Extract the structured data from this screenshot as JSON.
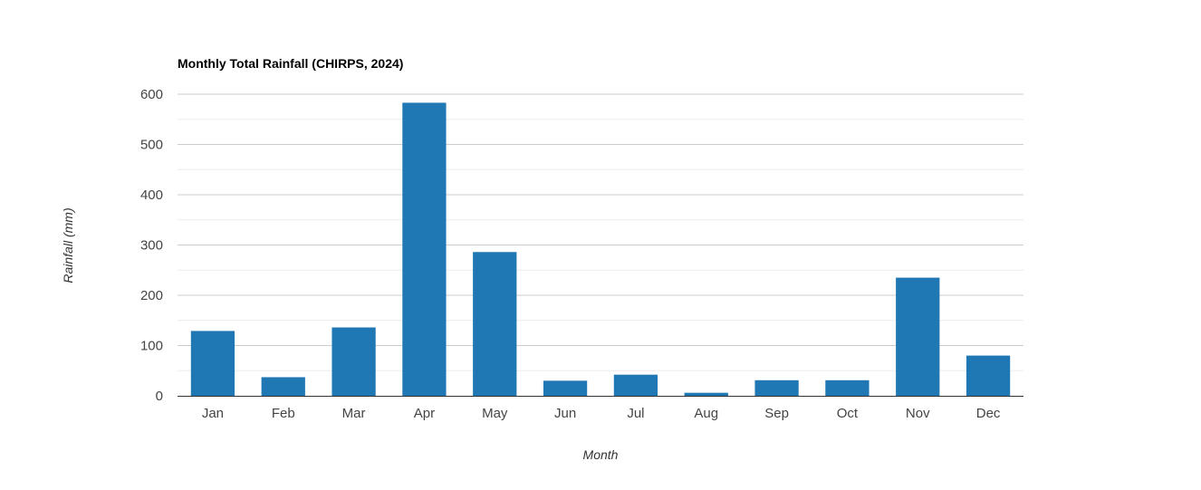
{
  "chart_data": {
    "type": "bar",
    "title": "Monthly Total Rainfall (CHIRPS, 2024)",
    "xlabel": "Month",
    "ylabel": "Rainfall (mm)",
    "categories": [
      "Jan",
      "Feb",
      "Mar",
      "Apr",
      "May",
      "Jun",
      "Jul",
      "Aug",
      "Sep",
      "Oct",
      "Nov",
      "Dec"
    ],
    "values": [
      129,
      37,
      136,
      583,
      286,
      30,
      42,
      6,
      31,
      31,
      235,
      80
    ],
    "ylim": [
      0,
      600
    ],
    "yticks": [
      "0",
      "100",
      "200",
      "300",
      "400",
      "500",
      "600"
    ],
    "grid": true,
    "legend": "none",
    "bar_color": "#1f77b4"
  }
}
